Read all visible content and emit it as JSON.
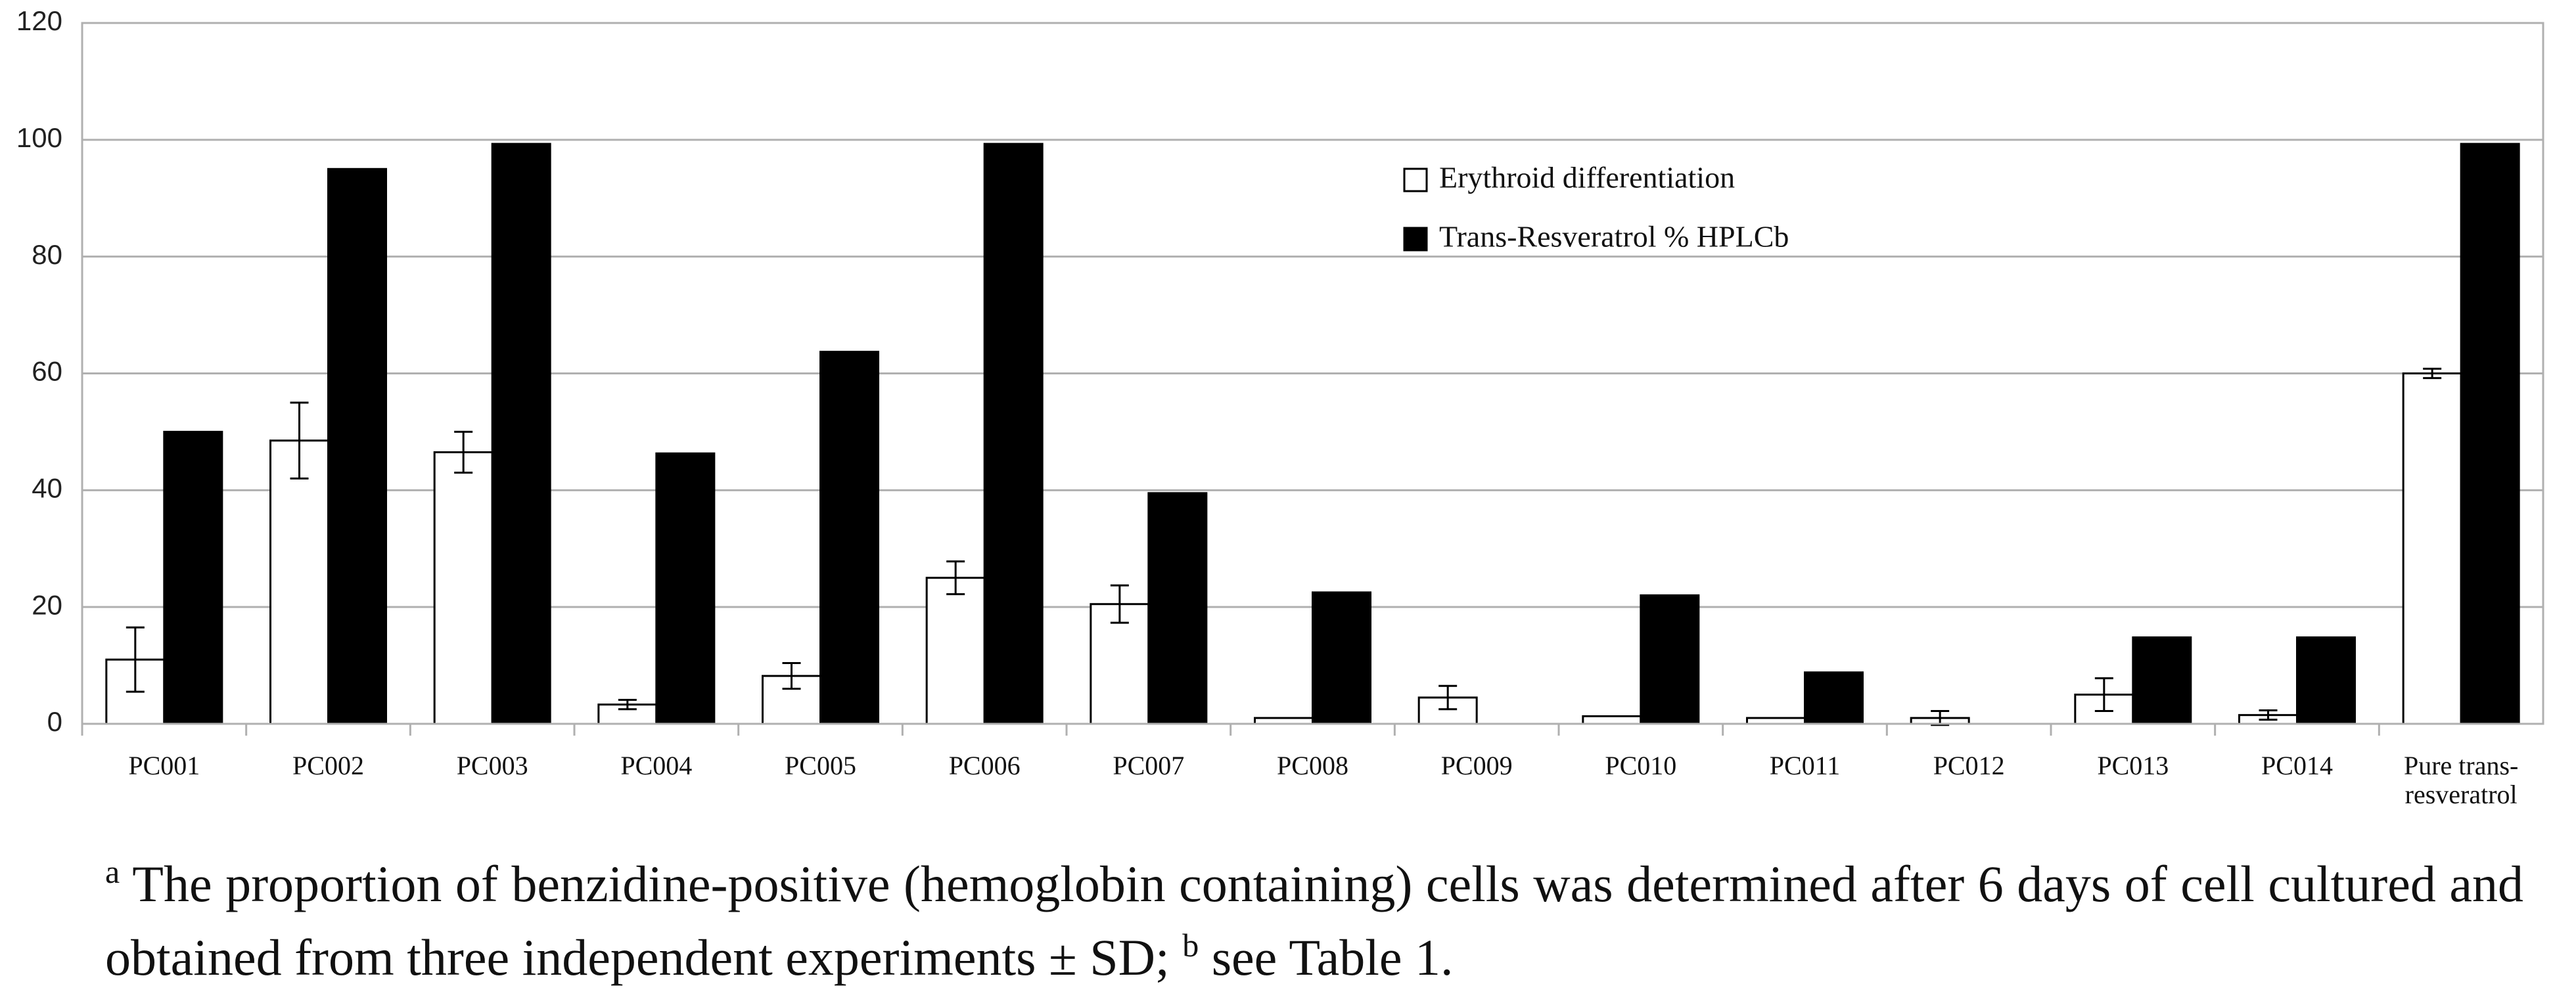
{
  "chart_data": {
    "type": "bar",
    "categories": [
      "PC001",
      "PC002",
      "PC003",
      "PC004",
      "PC005",
      "PC006",
      "PC007",
      "PC008",
      "PC009",
      "PC010",
      "PC011",
      "PC012",
      "PC013",
      "PC014",
      "Pure trans-resveratrol"
    ],
    "series": [
      {
        "name": "Erythroid differentiation",
        "color": "#ffffff",
        "values": [
          11,
          48.5,
          46.5,
          3.3,
          8.2,
          25,
          20.5,
          1,
          4.5,
          1.3,
          1,
          1,
          5,
          1.5,
          60
        ],
        "errors": [
          5.5,
          6.5,
          3.5,
          0.8,
          2.2,
          2.8,
          3.2,
          null,
          2,
          null,
          null,
          1.2,
          2.8,
          0.8,
          0.8
        ]
      },
      {
        "name": "Trans-Resveratrol % HPLCb",
        "color": "#000000",
        "values": [
          50,
          95,
          99.3,
          46.3,
          63.7,
          99.3,
          39.5,
          22.5,
          null,
          22,
          8.8,
          null,
          14.8,
          14.8,
          99.3
        ]
      }
    ],
    "ylim": [
      0,
      120
    ],
    "yticks": [
      0,
      20,
      40,
      60,
      80,
      100,
      120
    ],
    "grid": true
  },
  "caption": {
    "mark_a": "a",
    "text_1": "The proportion of benzidine-positive (hemoglobin containing) cells was determined after 6 days of cell cultured and obtained from three independent experiments ± SD;",
    "mark_b": "b",
    "text_2": "see Table 1."
  }
}
